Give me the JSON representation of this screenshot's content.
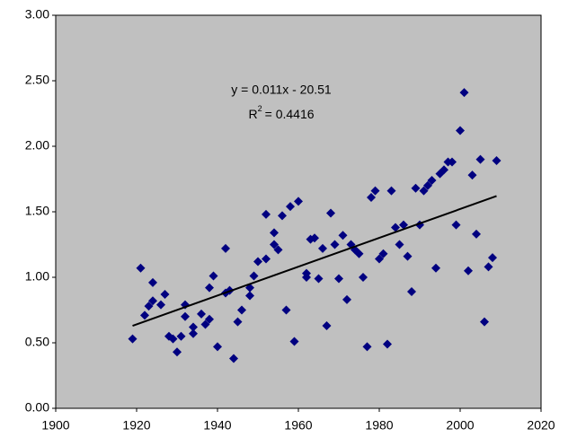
{
  "chart_data": {
    "type": "scatter",
    "series": [
      {
        "color": "#000080",
        "x": [
          1919,
          1921,
          1922,
          1923,
          1924,
          1924,
          1926,
          1927,
          1928,
          1929,
          1930,
          1931,
          1932,
          1932,
          1934,
          1934,
          1936,
          1937,
          1938,
          1938,
          1939,
          1940,
          1942,
          1942,
          1943,
          1944,
          1945,
          1946,
          1948,
          1948,
          1949,
          1950,
          1952,
          1952,
          1954,
          1954,
          1955,
          1956,
          1957,
          1958,
          1959,
          1960,
          1962,
          1962,
          1963,
          1964,
          1965,
          1966,
          1967,
          1968,
          1969,
          1970,
          1971,
          1972,
          1973,
          1974,
          1975,
          1976,
          1977,
          1978,
          1979,
          1980,
          1981,
          1982,
          1983,
          1984,
          1985,
          1986,
          1987,
          1988,
          1989,
          1990,
          1991,
          1992,
          1993,
          1994,
          1995,
          1996,
          1997,
          1998,
          1999,
          2000,
          2001,
          2002,
          2003,
          2004,
          2005,
          2006,
          2007,
          2008,
          2009
        ],
        "values": [
          0.53,
          1.07,
          0.71,
          0.78,
          0.96,
          0.82,
          0.79,
          0.87,
          0.55,
          0.53,
          0.43,
          0.55,
          0.79,
          0.7,
          0.62,
          0.57,
          0.72,
          0.64,
          0.92,
          0.68,
          1.01,
          0.47,
          0.88,
          1.22,
          0.9,
          0.38,
          0.66,
          0.75,
          0.92,
          0.86,
          1.01,
          1.12,
          1.14,
          1.48,
          1.34,
          1.25,
          1.21,
          1.47,
          0.75,
          1.54,
          0.51,
          1.58,
          1.03,
          1.0,
          1.29,
          1.3,
          0.99,
          1.22,
          0.63,
          1.49,
          1.25,
          0.99,
          1.32,
          0.83,
          1.25,
          1.21,
          1.18,
          1.0,
          0.47,
          1.61,
          1.66,
          1.14,
          1.18,
          0.49,
          1.66,
          1.38,
          1.25,
          1.4,
          1.16,
          0.89,
          1.68,
          1.4,
          1.66,
          1.7,
          1.74,
          1.07,
          1.79,
          1.82,
          1.88,
          1.88,
          1.4,
          2.12,
          2.41,
          1.05,
          1.78,
          1.33,
          1.9,
          0.66,
          1.08,
          1.15,
          1.89
        ]
      }
    ],
    "trendline": {
      "color": "#000000",
      "x": [
        1919,
        2009
      ],
      "y": [
        0.63,
        1.62
      ]
    },
    "equation": "y = 0.011x - 20.51",
    "r_squared": {
      "base": "R",
      "sup": "2",
      "rest": "= 0.4416"
    },
    "xlim": [
      1900,
      2020
    ],
    "xticks": [
      1900,
      1920,
      1940,
      1960,
      1980,
      2000,
      2020
    ],
    "ylim": [
      0,
      3
    ],
    "yticks": [
      {
        "value": 0,
        "label": "0.00"
      },
      {
        "value": 0.5,
        "label": "0.50"
      },
      {
        "value": 1,
        "label": "1.00"
      },
      {
        "value": 1.5,
        "label": "1.50"
      },
      {
        "value": 2,
        "label": "2.00"
      },
      {
        "value": 2.5,
        "label": "2.50"
      },
      {
        "value": 3,
        "label": "3.00"
      }
    ],
    "grid": false,
    "plot_background": "#c0c0c0"
  }
}
